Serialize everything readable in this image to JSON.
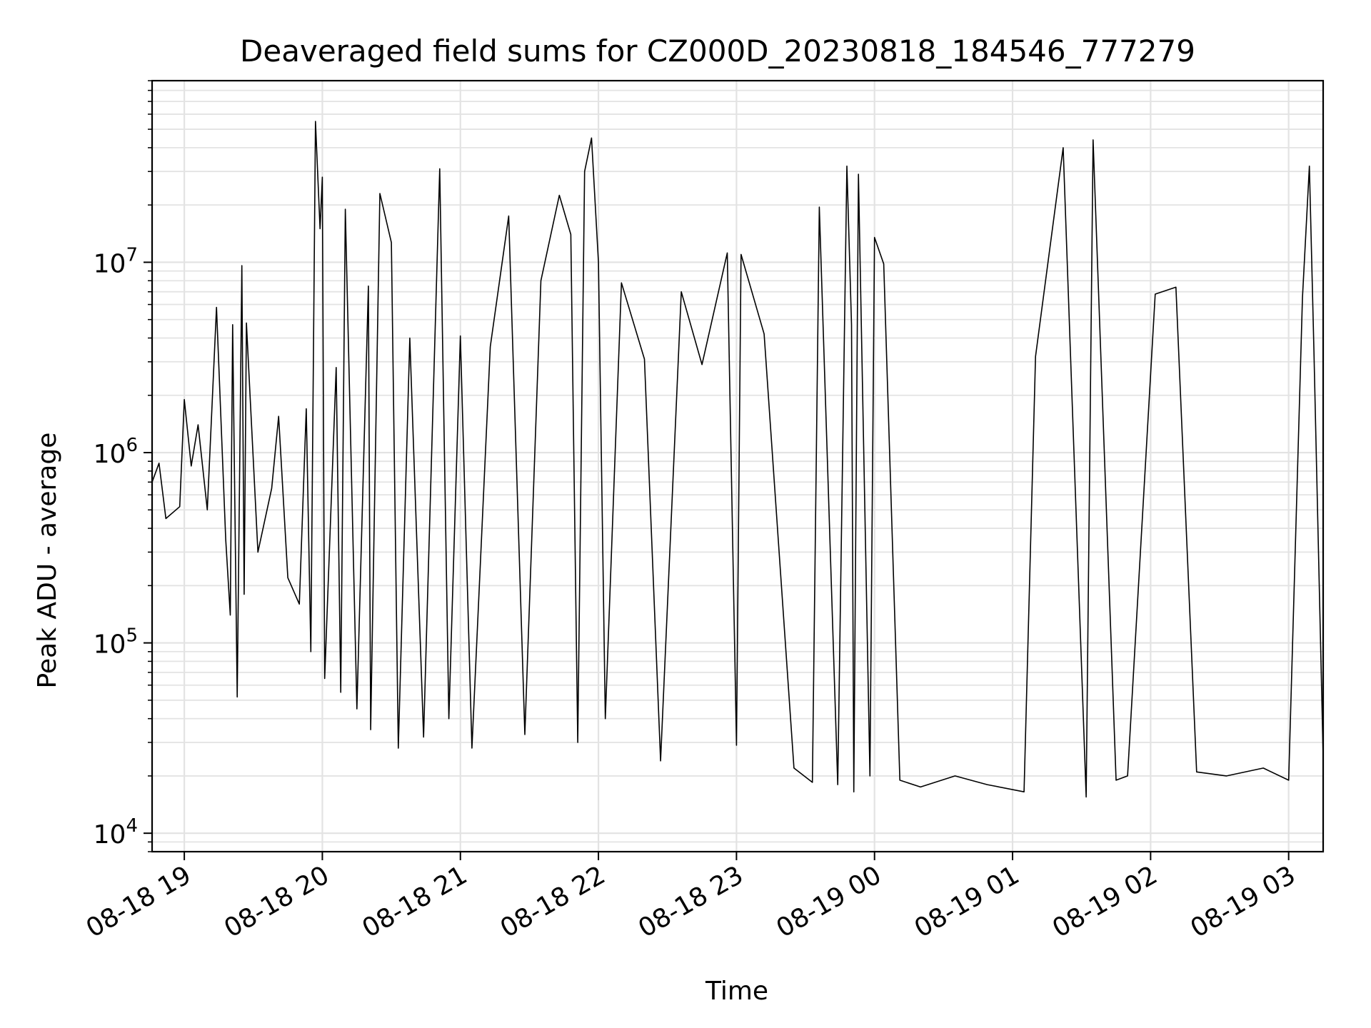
{
  "chart_data": {
    "type": "line",
    "title": "Deaveraged field sums for CZ000D_20230818_184546_777279",
    "xlabel": "Time",
    "ylabel": "Peak ADU - average",
    "x_range": [
      "2023-08-18 18:46",
      "2023-08-19 03:15"
    ],
    "y_range": [
      8000,
      90000000
    ],
    "y_scale": "log",
    "grid": "major and minor, light gray",
    "line_color": "#000000",
    "x_ticks": [
      "08-18 19",
      "08-18 20",
      "08-18 21",
      "08-18 22",
      "08-18 23",
      "08-19 00",
      "08-19 01",
      "08-19 02",
      "08-19 03"
    ],
    "y_ticks": [
      {
        "value": 10000,
        "base": "10",
        "exp": "4"
      },
      {
        "value": 100000,
        "base": "10",
        "exp": "5"
      },
      {
        "value": 1000000,
        "base": "10",
        "exp": "6"
      },
      {
        "value": 10000000,
        "base": "10",
        "exp": "7"
      }
    ],
    "series": [
      {
        "points": [
          [
            "2023-08-18 18:46",
            700000
          ],
          [
            "2023-08-18 18:49",
            880000
          ],
          [
            "2023-08-18 18:52",
            450000
          ],
          [
            "2023-08-18 18:58",
            520000
          ],
          [
            "2023-08-18 19:00",
            1900000
          ],
          [
            "2023-08-18 19:03",
            850000
          ],
          [
            "2023-08-18 19:06",
            1400000
          ],
          [
            "2023-08-18 19:10",
            500000
          ],
          [
            "2023-08-18 19:14",
            5800000
          ],
          [
            "2023-08-18 19:18",
            350000
          ],
          [
            "2023-08-18 19:20",
            140000
          ],
          [
            "2023-08-18 19:21",
            4700000
          ],
          [
            "2023-08-18 19:23",
            52000
          ],
          [
            "2023-08-18 19:25",
            9600000
          ],
          [
            "2023-08-18 19:26",
            180000
          ],
          [
            "2023-08-18 19:27",
            4800000
          ],
          [
            "2023-08-18 19:32",
            300000
          ],
          [
            "2023-08-18 19:38",
            650000
          ],
          [
            "2023-08-18 19:41",
            1550000
          ],
          [
            "2023-08-18 19:45",
            220000
          ],
          [
            "2023-08-18 19:50",
            160000
          ],
          [
            "2023-08-18 19:53",
            1700000
          ],
          [
            "2023-08-18 19:55",
            90000
          ],
          [
            "2023-08-18 19:57",
            55000000
          ],
          [
            "2023-08-18 19:59",
            15000000
          ],
          [
            "2023-08-18 20:00",
            28000000
          ],
          [
            "2023-08-18 20:01",
            65000
          ],
          [
            "2023-08-18 20:06",
            2800000
          ],
          [
            "2023-08-18 20:08",
            55000
          ],
          [
            "2023-08-18 20:10",
            19000000
          ],
          [
            "2023-08-18 20:15",
            45000
          ],
          [
            "2023-08-18 20:20",
            7500000
          ],
          [
            "2023-08-18 20:21",
            35000
          ],
          [
            "2023-08-18 20:25",
            23000000
          ],
          [
            "2023-08-18 20:30",
            12700000
          ],
          [
            "2023-08-18 20:33",
            28000
          ],
          [
            "2023-08-18 20:38",
            4000000
          ],
          [
            "2023-08-18 20:44",
            32000
          ],
          [
            "2023-08-18 20:51",
            31000000
          ],
          [
            "2023-08-18 20:55",
            40000
          ],
          [
            "2023-08-18 21:00",
            4100000
          ],
          [
            "2023-08-18 21:05",
            28000
          ],
          [
            "2023-08-18 21:13",
            3600000
          ],
          [
            "2023-08-18 21:21",
            17500000
          ],
          [
            "2023-08-18 21:28",
            33000
          ],
          [
            "2023-08-18 21:35",
            8000000
          ],
          [
            "2023-08-18 21:43",
            22500000
          ],
          [
            "2023-08-18 21:48",
            14000000
          ],
          [
            "2023-08-18 21:51",
            30000
          ],
          [
            "2023-08-18 21:54",
            30000000
          ],
          [
            "2023-08-18 21:57",
            45000000
          ],
          [
            "2023-08-18 22:00",
            10000000
          ],
          [
            "2023-08-18 22:03",
            40000
          ],
          [
            "2023-08-18 22:10",
            7800000
          ],
          [
            "2023-08-18 22:20",
            3100000
          ],
          [
            "2023-08-18 22:27",
            24000
          ],
          [
            "2023-08-18 22:36",
            7000000
          ],
          [
            "2023-08-18 22:45",
            2900000
          ],
          [
            "2023-08-18 22:56",
            11200000
          ],
          [
            "2023-08-18 23:00",
            29000
          ],
          [
            "2023-08-18 23:02",
            11000000
          ],
          [
            "2023-08-18 23:12",
            4200000
          ],
          [
            "2023-08-18 23:25",
            22000
          ],
          [
            "2023-08-18 23:33",
            18500
          ],
          [
            "2023-08-18 23:36",
            19500000
          ],
          [
            "2023-08-18 23:44",
            18000
          ],
          [
            "2023-08-18 23:48",
            32000000
          ],
          [
            "2023-08-18 23:50",
            4700000
          ],
          [
            "2023-08-18 23:51",
            16500
          ],
          [
            "2023-08-18 23:53",
            29000000
          ],
          [
            "2023-08-18 23:58",
            20000
          ],
          [
            "2023-08-19 00:00",
            13500000
          ],
          [
            "2023-08-19 00:04",
            9800000
          ],
          [
            "2023-08-19 00:11",
            19000
          ],
          [
            "2023-08-19 00:20",
            17500
          ],
          [
            "2023-08-19 00:35",
            20000
          ],
          [
            "2023-08-19 00:49",
            18000
          ],
          [
            "2023-08-19 01:05",
            16500
          ],
          [
            "2023-08-19 01:10",
            3200000
          ],
          [
            "2023-08-19 01:22",
            40000000
          ],
          [
            "2023-08-19 01:32",
            15500
          ],
          [
            "2023-08-19 01:35",
            44000000
          ],
          [
            "2023-08-19 01:45",
            19000
          ],
          [
            "2023-08-19 01:50",
            20000
          ],
          [
            "2023-08-19 02:02",
            6800000
          ],
          [
            "2023-08-19 02:11",
            7400000
          ],
          [
            "2023-08-19 02:20",
            21000
          ],
          [
            "2023-08-19 02:33",
            20000
          ],
          [
            "2023-08-19 02:49",
            22000
          ],
          [
            "2023-08-19 03:00",
            19000
          ],
          [
            "2023-08-19 03:06",
            6500000
          ],
          [
            "2023-08-19 03:09",
            32000000
          ],
          [
            "2023-08-19 03:11",
            3400000
          ],
          [
            "2023-08-19 03:15",
            25000
          ]
        ]
      }
    ]
  }
}
